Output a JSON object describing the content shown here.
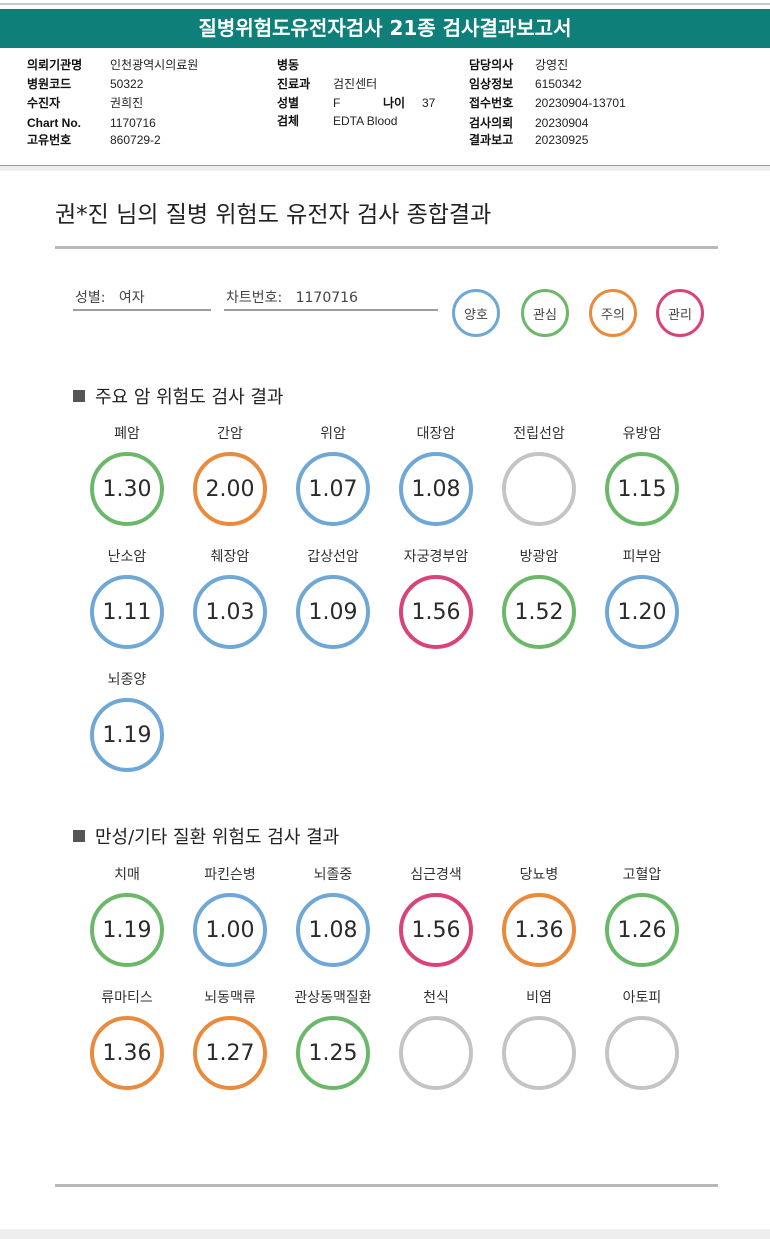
{
  "header": {
    "title": "질병위험도유전자검사 21종 검사결과보고서"
  },
  "info": {
    "col1": [
      {
        "label": "의뢰기관명",
        "value": "인천광역시의료원"
      },
      {
        "label": "병원코드",
        "value": "50322"
      },
      {
        "label": "수진자",
        "value": "권희진"
      },
      {
        "label": "Chart No.",
        "value": "1170716"
      },
      {
        "label": "고유번호",
        "value": "860729-2"
      }
    ],
    "col2": [
      {
        "label": "병동",
        "value": ""
      },
      {
        "label": "진료과",
        "value": "검진센터"
      },
      {
        "label": "성별",
        "value": "F"
      },
      {
        "label": "검체",
        "value": "EDTA Blood"
      }
    ],
    "age": {
      "label": "나이",
      "value": "37"
    },
    "col3": [
      {
        "label": "담당의사",
        "value": "강영진"
      },
      {
        "label": "임상정보",
        "value": "6150342"
      },
      {
        "label": "접수번호",
        "value": "20230904-13701"
      },
      {
        "label": "검사의뢰",
        "value": "20230904"
      },
      {
        "label": "결과보고",
        "value": "20230925"
      }
    ]
  },
  "report": {
    "title": "권*진 님의 질병 위험도 유전자 검사 종합결과",
    "gender_label": "성별:",
    "gender_value": "여자",
    "chart_label": "차트번호:",
    "chart_value": "1170716"
  },
  "legend": [
    {
      "label": "양호",
      "color": "#6fa8d6"
    },
    {
      "label": "관심",
      "color": "#6cb86a"
    },
    {
      "label": "주의",
      "color": "#e98a3c"
    },
    {
      "label": "관리",
      "color": "#d9437a"
    }
  ],
  "sections": {
    "cancer_title": "주요 암 위험도 검사 결과",
    "chronic_title": "만성/기타 질환 위험도 검사 결과"
  },
  "cancer": [
    {
      "label": "폐암",
      "value": "1.30",
      "status": "관심"
    },
    {
      "label": "간암",
      "value": "2.00",
      "status": "주의"
    },
    {
      "label": "위암",
      "value": "1.07",
      "status": "양호"
    },
    {
      "label": "대장암",
      "value": "1.08",
      "status": "양호"
    },
    {
      "label": "전립선암",
      "value": "",
      "status": "none"
    },
    {
      "label": "유방암",
      "value": "1.15",
      "status": "관심"
    },
    {
      "label": "난소암",
      "value": "1.11",
      "status": "양호"
    },
    {
      "label": "췌장암",
      "value": "1.03",
      "status": "양호"
    },
    {
      "label": "갑상선암",
      "value": "1.09",
      "status": "양호"
    },
    {
      "label": "자궁경부암",
      "value": "1.56",
      "status": "관리"
    },
    {
      "label": "방광암",
      "value": "1.52",
      "status": "관심"
    },
    {
      "label": "피부암",
      "value": "1.20",
      "status": "양호"
    },
    {
      "label": "뇌종양",
      "value": "1.19",
      "status": "양호"
    }
  ],
  "chronic": [
    {
      "label": "치매",
      "value": "1.19",
      "status": "관심"
    },
    {
      "label": "파킨슨병",
      "value": "1.00",
      "status": "양호"
    },
    {
      "label": "뇌졸중",
      "value": "1.08",
      "status": "양호"
    },
    {
      "label": "심근경색",
      "value": "1.56",
      "status": "관리"
    },
    {
      "label": "당뇨병",
      "value": "1.36",
      "status": "주의"
    },
    {
      "label": "고혈압",
      "value": "1.26",
      "status": "관심"
    },
    {
      "label": "류마티스",
      "value": "1.36",
      "status": "주의"
    },
    {
      "label": "뇌동맥류",
      "value": "1.27",
      "status": "주의"
    },
    {
      "label": "관상동맥질환",
      "value": "1.25",
      "status": "관심"
    },
    {
      "label": "천식",
      "value": "",
      "status": "none"
    },
    {
      "label": "비염",
      "value": "",
      "status": "none"
    },
    {
      "label": "아토피",
      "value": "",
      "status": "none"
    }
  ],
  "status_colors": {
    "양호": "#6fa8d6",
    "관심": "#6cb86a",
    "주의": "#e98a3c",
    "관리": "#d9437a",
    "none": "#c4c4c4"
  }
}
